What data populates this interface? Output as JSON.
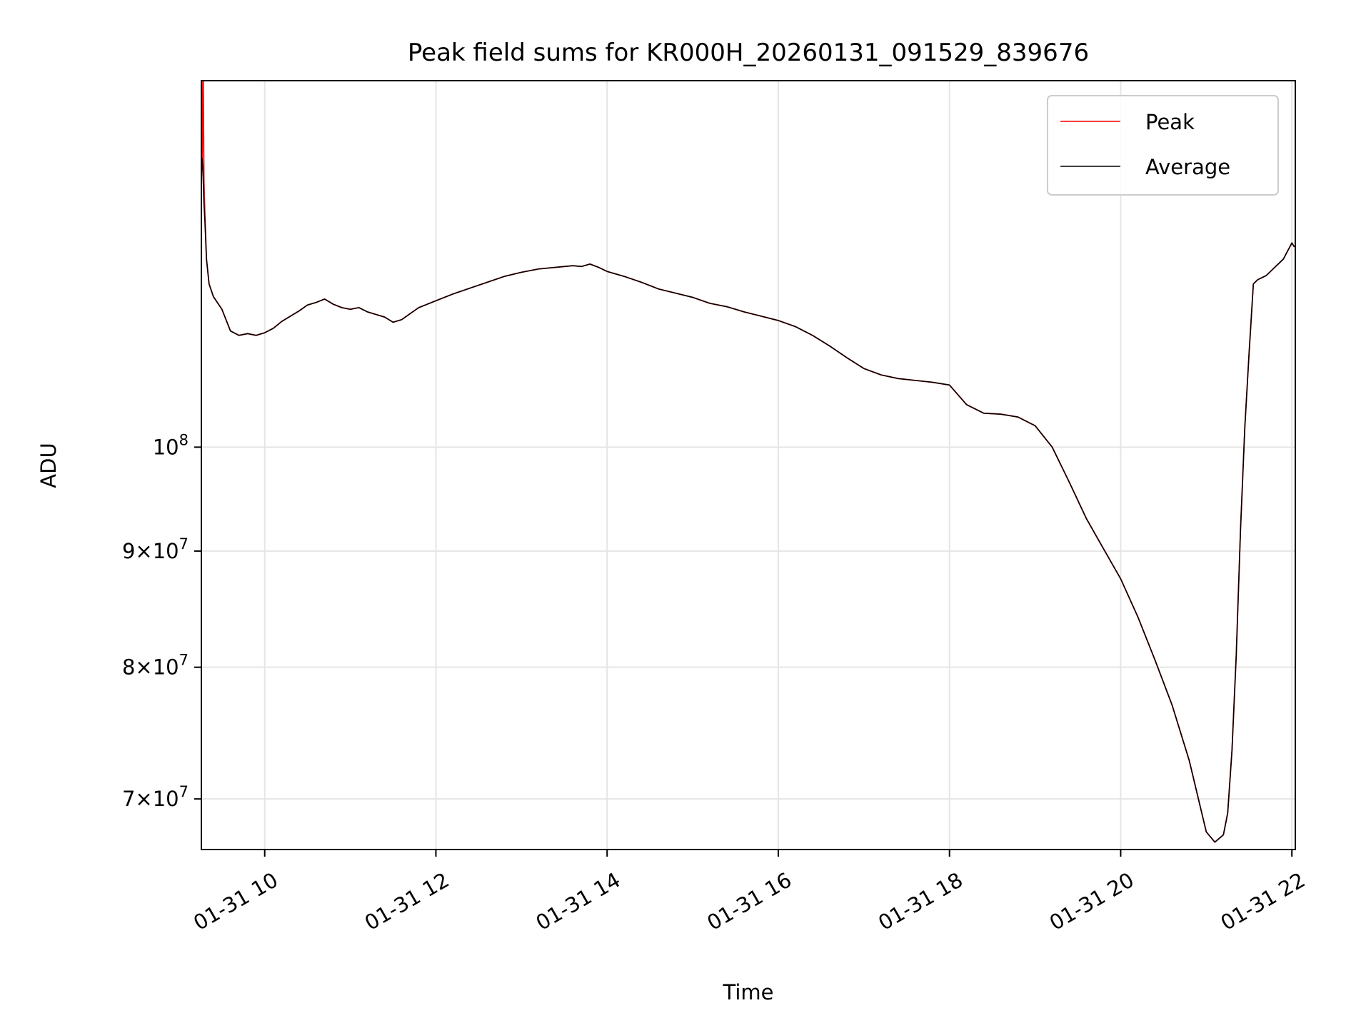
{
  "chart_data": {
    "type": "line",
    "title": "Peak field sums for KR000H_20260131_091529_839676",
    "xlabel": "Time",
    "ylabel": "ADU",
    "yscale": "log",
    "grid": true,
    "legend_position": "upper right",
    "x_unit": "hours since 2026-01-31 00:00",
    "xlim": [
      9.26,
      22.04
    ],
    "ylim": [
      66500000,
      145000000
    ],
    "x_ticks": [
      {
        "value": 10,
        "label": "01-31 10"
      },
      {
        "value": 12,
        "label": "01-31 12"
      },
      {
        "value": 14,
        "label": "01-31 14"
      },
      {
        "value": 16,
        "label": "01-31 16"
      },
      {
        "value": 18,
        "label": "01-31 18"
      },
      {
        "value": 20,
        "label": "01-31 20"
      },
      {
        "value": 22,
        "label": "01-31 22"
      }
    ],
    "y_ticks": [
      {
        "value": 100000000,
        "mant": "",
        "exp": "8"
      },
      {
        "value": 90000000,
        "mant": "9",
        "exp": "7"
      },
      {
        "value": 80000000,
        "mant": "8",
        "exp": "7"
      },
      {
        "value": 70000000,
        "mant": "7",
        "exp": "7"
      }
    ],
    "series": [
      {
        "name": "Peak",
        "color": "#ff0000",
        "x": [
          9.27,
          9.28,
          9.29,
          9.3,
          9.32,
          9.35,
          9.4,
          9.5,
          9.6,
          9.7,
          9.8,
          9.9,
          10.0,
          10.1,
          10.2,
          10.3,
          10.4,
          10.5,
          10.6,
          10.7,
          10.8,
          10.9,
          11.0,
          11.1,
          11.2,
          11.3,
          11.4,
          11.5,
          11.6,
          11.7,
          11.8,
          11.9,
          12.0,
          12.2,
          12.4,
          12.6,
          12.8,
          13.0,
          13.2,
          13.4,
          13.5,
          13.6,
          13.7,
          13.8,
          13.9,
          14.0,
          14.2,
          14.4,
          14.6,
          14.8,
          15.0,
          15.2,
          15.4,
          15.6,
          15.8,
          16.0,
          16.2,
          16.4,
          16.6,
          16.8,
          17.0,
          17.2,
          17.4,
          17.6,
          17.8,
          18.0,
          18.2,
          18.4,
          18.6,
          18.8,
          19.0,
          19.2,
          19.4,
          19.6,
          19.8,
          20.0,
          20.2,
          20.4,
          20.6,
          20.8,
          21.0,
          21.1,
          21.2,
          21.25,
          21.3,
          21.35,
          21.4,
          21.45,
          21.5,
          21.55,
          21.6,
          21.7,
          21.8,
          21.9,
          21.95,
          22.0,
          22.03
        ],
        "y": [
          134000000,
          150000000,
          131000000,
          127000000,
          121000000,
          118000000,
          116500000,
          115000000,
          112500000,
          112000000,
          112200000,
          112000000,
          112300000,
          112800000,
          113600000,
          114200000,
          114800000,
          115500000,
          115800000,
          116200000,
          115600000,
          115200000,
          115000000,
          115200000,
          114700000,
          114400000,
          114100000,
          113500000,
          113800000,
          114500000,
          115200000,
          115600000,
          116000000,
          116800000,
          117500000,
          118200000,
          118900000,
          119400000,
          119800000,
          120000000,
          120100000,
          120200000,
          120100000,
          120400000,
          120000000,
          119500000,
          118900000,
          118200000,
          117400000,
          116900000,
          116400000,
          115700000,
          115300000,
          114700000,
          114200000,
          113700000,
          113000000,
          112000000,
          110800000,
          109500000,
          108300000,
          107600000,
          107200000,
          107000000,
          106800000,
          106500000,
          104400000,
          103500000,
          103400000,
          103100000,
          102200000,
          100000000,
          96500000,
          93000000,
          90200000,
          87500000,
          84200000,
          80600000,
          77000000,
          72800000,
          67700000,
          67000000,
          67500000,
          69000000,
          73500000,
          81000000,
          92000000,
          102000000,
          110000000,
          118000000,
          118500000,
          119000000,
          120000000,
          121000000,
          122000000,
          123000000,
          122500000
        ]
      },
      {
        "name": "Average",
        "color": "#000000",
        "x": [
          9.27,
          9.28,
          9.29,
          9.3,
          9.32,
          9.35,
          9.4,
          9.5,
          9.6,
          9.7,
          9.8,
          9.9,
          10.0,
          10.1,
          10.2,
          10.3,
          10.4,
          10.5,
          10.6,
          10.7,
          10.8,
          10.9,
          11.0,
          11.1,
          11.2,
          11.3,
          11.4,
          11.5,
          11.6,
          11.7,
          11.8,
          11.9,
          12.0,
          12.2,
          12.4,
          12.6,
          12.8,
          13.0,
          13.2,
          13.4,
          13.5,
          13.6,
          13.7,
          13.8,
          13.9,
          14.0,
          14.2,
          14.4,
          14.6,
          14.8,
          15.0,
          15.2,
          15.4,
          15.6,
          15.8,
          16.0,
          16.2,
          16.4,
          16.6,
          16.8,
          17.0,
          17.2,
          17.4,
          17.6,
          17.8,
          18.0,
          18.2,
          18.4,
          18.6,
          18.8,
          19.0,
          19.2,
          19.4,
          19.6,
          19.8,
          20.0,
          20.2,
          20.4,
          20.6,
          20.8,
          21.0,
          21.1,
          21.2,
          21.25,
          21.3,
          21.35,
          21.4,
          21.45,
          21.5,
          21.55,
          21.6,
          21.7,
          21.8,
          21.9,
          21.95,
          22.0,
          22.03
        ],
        "y": [
          134000000,
          131500000,
          128000000,
          126000000,
          121000000,
          118000000,
          116500000,
          115000000,
          112500000,
          112000000,
          112200000,
          112000000,
          112300000,
          112800000,
          113600000,
          114200000,
          114800000,
          115500000,
          115800000,
          116200000,
          115600000,
          115200000,
          115000000,
          115200000,
          114700000,
          114400000,
          114100000,
          113500000,
          113800000,
          114500000,
          115200000,
          115600000,
          116000000,
          116800000,
          117500000,
          118200000,
          118900000,
          119400000,
          119800000,
          120000000,
          120100000,
          120200000,
          120100000,
          120400000,
          120000000,
          119500000,
          118900000,
          118200000,
          117400000,
          116900000,
          116400000,
          115700000,
          115300000,
          114700000,
          114200000,
          113700000,
          113000000,
          112000000,
          110800000,
          109500000,
          108300000,
          107600000,
          107200000,
          107000000,
          106800000,
          106500000,
          104400000,
          103500000,
          103400000,
          103100000,
          102200000,
          100000000,
          96500000,
          93000000,
          90200000,
          87500000,
          84200000,
          80600000,
          77000000,
          72800000,
          67700000,
          67000000,
          67500000,
          69000000,
          73500000,
          81000000,
          92000000,
          102000000,
          110000000,
          118000000,
          118500000,
          119000000,
          120000000,
          121000000,
          122000000,
          123000000,
          122500000
        ]
      }
    ]
  }
}
